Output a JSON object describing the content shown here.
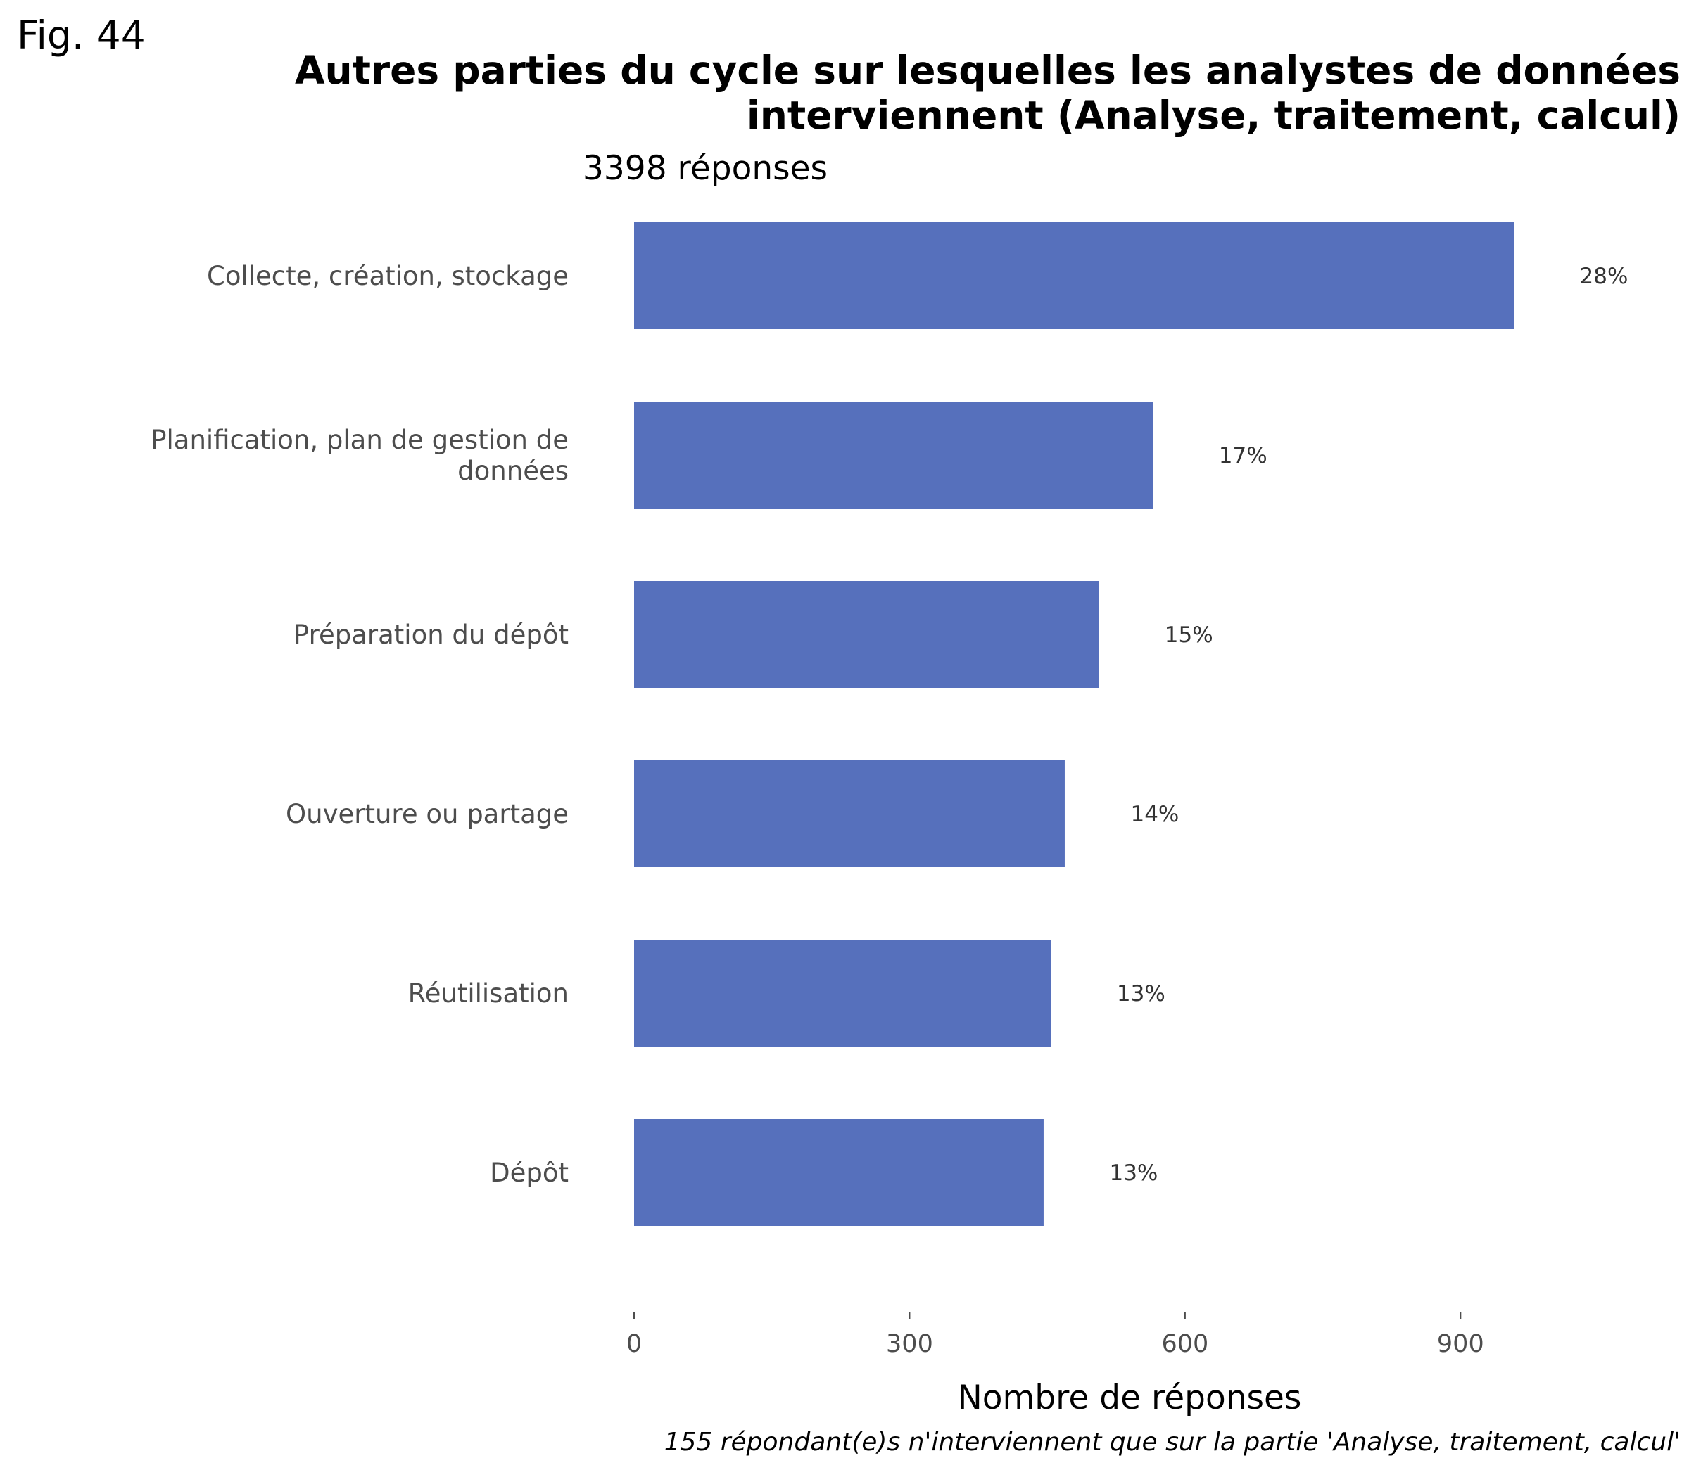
{
  "figure_label": "Fig. 44",
  "chart_data": {
    "type": "bar",
    "orientation": "horizontal",
    "title_line1": "Autres parties du cycle sur lesquelles les analystes de données",
    "title_line2": "interviennent (Analyse, traitement, calcul)",
    "subtitle": "3398 réponses",
    "categories": [
      [
        "Collecte, création, stockage"
      ],
      [
        "Planification, plan de gestion de",
        "données"
      ],
      [
        "Préparation du dépôt"
      ],
      [
        "Ouverture ou partage"
      ],
      [
        "Réutilisation"
      ],
      [
        "Dépôt"
      ]
    ],
    "values": [
      958,
      565,
      506,
      469,
      454,
      446
    ],
    "value_labels": [
      "28%",
      "17%",
      "15%",
      "14%",
      "13%",
      "13%"
    ],
    "xlabel": "Nombre de réponses",
    "ylabel": "",
    "xlim": [
      0,
      1120
    ],
    "x_ticks": [
      0,
      300,
      600,
      900
    ],
    "bar_color": "#5670bc",
    "grid": false,
    "caption": "155 répondant(e)s n'interviennent que sur la partie 'Analyse, traitement, calcul'"
  }
}
